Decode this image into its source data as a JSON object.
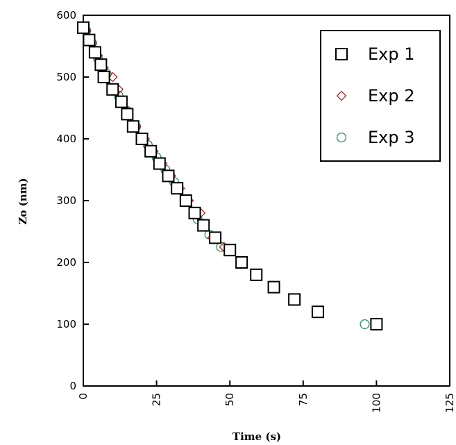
{
  "chart_data": {
    "type": "scatter",
    "xlabel": "Time (s)",
    "ylabel": "Zo (nm)",
    "xlim": [
      0,
      125
    ],
    "ylim": [
      0,
      600
    ],
    "xticks": [
      "0",
      "25",
      "50",
      "75",
      "100",
      "125"
    ],
    "yticks": [
      "0",
      "100",
      "200",
      "300",
      "400",
      "500",
      "600"
    ],
    "grid": false,
    "legend_position": "top-right",
    "series": [
      {
        "name": "Exp 1",
        "marker": "square",
        "color": "#000000",
        "x": [
          0,
          2,
          4,
          6,
          7,
          10,
          13,
          15,
          17,
          20,
          23,
          26,
          29,
          32,
          35,
          38,
          41,
          45,
          50,
          54,
          59,
          65,
          72,
          80,
          100
        ],
        "y": [
          580,
          560,
          540,
          520,
          500,
          480,
          460,
          440,
          420,
          400,
          380,
          360,
          340,
          320,
          300,
          280,
          260,
          240,
          220,
          200,
          180,
          160,
          140,
          120,
          100
        ]
      },
      {
        "name": "Exp 2",
        "marker": "diamond",
        "color": "#b22222",
        "x": [
          1,
          3,
          5,
          7,
          10,
          12,
          15,
          18,
          21,
          24,
          27,
          30,
          33,
          36,
          40,
          44,
          48
        ],
        "y": [
          575,
          555,
          535,
          515,
          500,
          480,
          445,
          420,
          400,
          380,
          360,
          340,
          320,
          300,
          280,
          240,
          225
        ]
      },
      {
        "name": "Exp 3",
        "marker": "circle",
        "color": "#2e8b57",
        "x": [
          1,
          3,
          5,
          8,
          12,
          15,
          18,
          22,
          25,
          28,
          31,
          35,
          39,
          43,
          47,
          96
        ],
        "y": [
          575,
          555,
          530,
          505,
          470,
          445,
          420,
          390,
          370,
          350,
          330,
          300,
          270,
          245,
          225,
          100
        ]
      }
    ]
  }
}
